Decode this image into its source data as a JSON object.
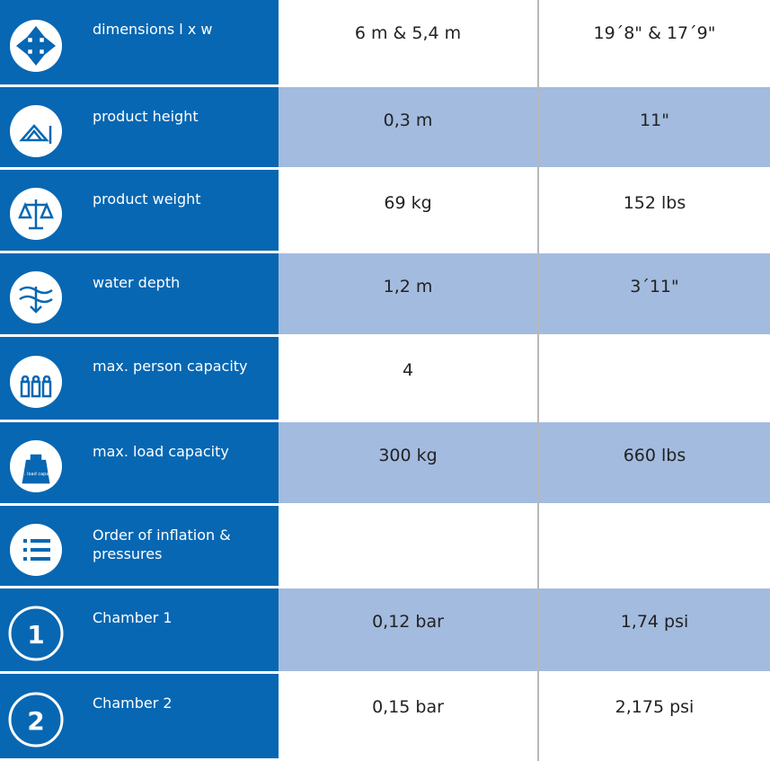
{
  "table": {
    "rows": [
      {
        "label": "dimensions l x w",
        "cells": [
          "6 m & 5,4 m",
          "19´8\" & 17´9\""
        ]
      },
      {
        "label": "product height",
        "cells": [
          "0,3 m",
          "11\""
        ]
      },
      {
        "label": "product weight",
        "cells": [
          "69 kg",
          "152 lbs"
        ]
      },
      {
        "label": "water depth",
        "cells": [
          "1,2 m",
          "3´11\""
        ]
      },
      {
        "label": "max. person capacity",
        "cells": [
          "4"
        ]
      },
      {
        "label": "max. load capacity",
        "icon_text": "Max. load capacity",
        "cells": [
          "300 kg",
          "660 lbs"
        ]
      },
      {
        "label": "Order of inflation & pressures",
        "cells": []
      },
      {
        "label": "Chamber 1",
        "icon_text": "1",
        "cells": [
          "0,12 bar",
          "1,74 psi"
        ]
      },
      {
        "label": "Chamber 2",
        "icon_text": "2",
        "cells": [
          "0,15 bar",
          "2,175 psi"
        ]
      }
    ]
  }
}
